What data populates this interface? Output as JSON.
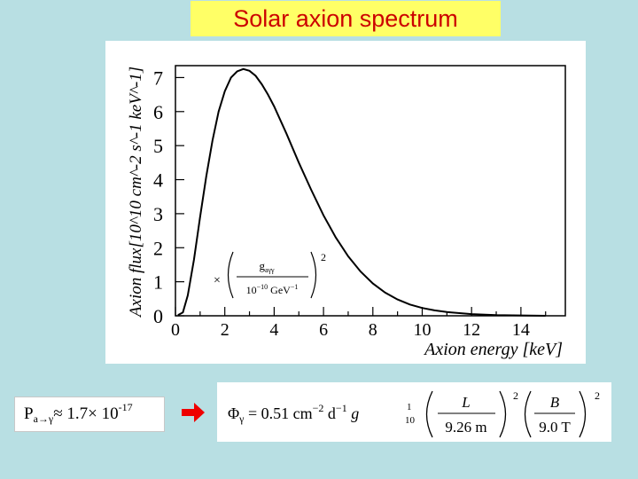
{
  "slide": {
    "title": "Solar  axion spectrum",
    "probability": {
      "prefix": "P",
      "subscript": "a→γ",
      "approx": " ≈ 1.7× 10",
      "exponent": "-17"
    },
    "formula": {
      "lhs": "Φ",
      "lhs_sub": "γ",
      "eq": " = 0.51 cm",
      "exp1": "−2",
      "d": " d",
      "exp2": "−1",
      "g": " g",
      "g_sup": "1",
      "g_sub": "10",
      "frac1_num": "L",
      "frac1_den": "9.26 m",
      "frac2_num": "B",
      "frac2_den": "9.0 T",
      "square": "2"
    },
    "colors": {
      "background": "#b8dfe3",
      "title_bg": "#ffff66",
      "title_text": "#cc0000",
      "arrow": "#ee0000"
    }
  },
  "chart_data": {
    "type": "line",
    "ylabel": "Axion flux[10^10 cm^-2 s^-1 keV^-1]",
    "xlabel": "Axion energy [keV]",
    "xlim": [
      0,
      15.8
    ],
    "ylim": [
      0,
      7.35
    ],
    "xticks": [
      "0",
      "2",
      "4",
      "6",
      "8",
      "10",
      "12",
      "14"
    ],
    "yticks": [
      "0",
      "1",
      "2",
      "3",
      "4",
      "5",
      "6",
      "7"
    ],
    "annotation": {
      "multiplier": "×",
      "numerator": "g",
      "numerator_sub": "aγγ",
      "denominator": "10",
      "denominator_exp": "−10",
      "denominator_unit": " GeV",
      "denominator_unit_exp": "−1",
      "power": "2"
    },
    "series": [
      {
        "x": [
          0.1,
          0.3,
          0.5,
          0.75,
          1.0,
          1.25,
          1.5,
          1.75,
          2.0,
          2.25,
          2.5,
          2.75,
          3.0,
          3.25,
          3.5,
          3.75,
          4.0,
          4.5,
          5.0,
          5.5,
          6.0,
          6.5,
          7.0,
          7.5,
          8.0,
          8.5,
          9.0,
          9.5,
          10.0,
          10.5,
          11.0,
          12.0,
          13.0,
          14.0,
          15.0
        ],
        "y": [
          0.02,
          0.1,
          0.6,
          1.65,
          2.9,
          4.1,
          5.15,
          6.0,
          6.6,
          7.0,
          7.18,
          7.25,
          7.2,
          7.05,
          6.8,
          6.5,
          6.15,
          5.35,
          4.5,
          3.7,
          2.95,
          2.3,
          1.75,
          1.3,
          0.95,
          0.68,
          0.48,
          0.33,
          0.23,
          0.16,
          0.11,
          0.05,
          0.02,
          0.01,
          0.0
        ]
      }
    ]
  }
}
